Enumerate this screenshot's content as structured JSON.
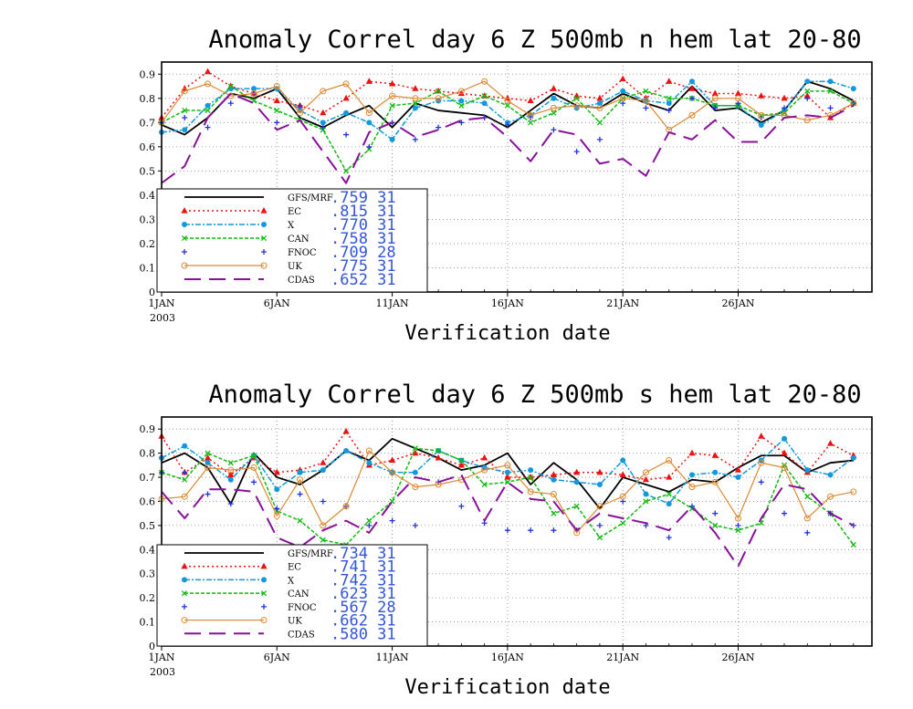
{
  "figure": {
    "xlabel": "Verification date",
    "year_label": "2003"
  },
  "model_styles": [
    {
      "name": "GFS/MRF",
      "color": "#000000",
      "dash": "",
      "marker": "none",
      "width": 1.8
    },
    {
      "name": "EC",
      "color": "#ee1111",
      "dash": "2,3",
      "marker": "triangle",
      "width": 1.5
    },
    {
      "name": "X",
      "color": "#1199dd",
      "dash": "6,2,2,2",
      "marker": "circle",
      "width": 1.5
    },
    {
      "name": "CAN",
      "color": "#11bb11",
      "dash": "4,2",
      "marker": "x",
      "width": 1.5
    },
    {
      "name": "FNOC",
      "color": "#2233dd",
      "dash": "",
      "marker": "plus",
      "width": 0
    },
    {
      "name": "UK",
      "color": "#dd8833",
      "dash": "",
      "marker": "opencircle",
      "width": 1.2
    },
    {
      "name": "CDAS",
      "color": "#881199",
      "dash": "18,9",
      "marker": "none",
      "width": 2
    }
  ],
  "chart_data": [
    {
      "type": "line",
      "title": "Anomaly Correl  day 6  Z 500mb  n hem  lat 20-80",
      "xlabel": "Verification date",
      "x": [
        1,
        2,
        3,
        4,
        5,
        6,
        7,
        8,
        9,
        10,
        11,
        12,
        13,
        14,
        15,
        16,
        17,
        18,
        19,
        20,
        21,
        22,
        23,
        24,
        25,
        26,
        27,
        28,
        29,
        30,
        31
      ],
      "xlim": [
        1,
        31.8
      ],
      "ylim": [
        0,
        0.95
      ],
      "yticks": [
        0,
        0.1,
        0.2,
        0.3,
        0.4,
        0.5,
        0.6,
        0.7,
        0.8,
        0.9
      ],
      "yticklabels": [
        "0",
        "0.1",
        "0.2",
        "0.3",
        "0.4",
        "0.5",
        "0.6",
        "0.7",
        "0.8",
        "0.9"
      ],
      "xticks": [
        1,
        6,
        11,
        16,
        21,
        26
      ],
      "xticklabels": [
        "1JAN",
        "6JAN",
        "11JAN",
        "16JAN",
        "21JAN",
        "26JAN"
      ],
      "grid": true,
      "legend": "bottom-left",
      "series": [
        {
          "name": "GFS/MRF",
          "score": ".759",
          "count": "31",
          "values": [
            0.69,
            0.65,
            0.72,
            0.82,
            0.8,
            0.84,
            0.72,
            0.68,
            0.73,
            0.77,
            0.68,
            0.78,
            0.75,
            0.74,
            0.73,
            0.68,
            0.75,
            0.82,
            0.77,
            0.76,
            0.82,
            0.78,
            0.75,
            0.85,
            0.75,
            0.76,
            0.7,
            0.75,
            0.87,
            0.84,
            0.79
          ]
        },
        {
          "name": "EC",
          "score": ".815",
          "count": "31",
          "values": [
            0.72,
            0.84,
            0.91,
            0.85,
            0.82,
            0.79,
            0.77,
            0.74,
            0.8,
            0.87,
            0.86,
            0.84,
            0.83,
            0.82,
            0.81,
            0.8,
            0.79,
            0.84,
            0.81,
            0.8,
            0.88,
            0.8,
            0.87,
            0.84,
            0.82,
            0.82,
            0.81,
            0.8,
            0.81,
            0.72,
            0.78
          ]
        },
        {
          "name": "X",
          "score": ".770",
          "count": "31",
          "values": [
            0.66,
            0.67,
            0.77,
            0.84,
            0.84,
            0.84,
            0.75,
            0.7,
            0.74,
            0.7,
            0.63,
            0.76,
            0.79,
            0.79,
            0.78,
            0.7,
            0.73,
            0.8,
            0.76,
            0.78,
            0.83,
            0.79,
            0.78,
            0.87,
            0.77,
            0.77,
            0.69,
            0.75,
            0.87,
            0.87,
            0.84
          ]
        },
        {
          "name": "CAN",
          "score": ".758",
          "count": "31",
          "values": [
            0.7,
            0.75,
            0.75,
            0.85,
            0.79,
            0.75,
            0.71,
            0.67,
            0.5,
            0.59,
            0.77,
            0.78,
            0.83,
            0.77,
            0.81,
            0.77,
            0.7,
            0.74,
            0.8,
            0.7,
            0.8,
            0.83,
            0.8,
            0.8,
            0.77,
            0.77,
            0.73,
            0.74,
            0.83,
            0.83,
            0.78
          ]
        },
        {
          "name": "FNOC",
          "score": ".709",
          "count": "28",
          "values": [
            0.7,
            0.72,
            0.68,
            0.78,
            0.82,
            0.7,
            0.77,
            0.68,
            0.65,
            0.6,
            0.7,
            0.63,
            0.68,
            0.7,
            0.72,
            0.69,
            0.72,
            0.67,
            0.58,
            0.63,
            0.78,
            0.76,
            0.75,
            0.8,
            0.76,
            0.78,
            0.72,
            0.76,
            0.8,
            0.76,
            0.78
          ]
        },
        {
          "name": "UK",
          "score": ".775",
          "count": "31",
          "values": [
            0.7,
            0.83,
            0.86,
            0.81,
            0.82,
            0.85,
            0.74,
            0.83,
            0.86,
            0.74,
            0.81,
            0.8,
            0.8,
            0.83,
            0.87,
            0.79,
            0.73,
            0.76,
            0.77,
            0.76,
            0.8,
            0.79,
            0.67,
            0.73,
            0.8,
            0.8,
            0.73,
            0.73,
            0.71,
            0.73,
            0.78
          ]
        },
        {
          "name": "CDAS",
          "score": ".652",
          "count": "31",
          "values": [
            0.45,
            0.52,
            0.72,
            0.82,
            0.78,
            0.67,
            0.71,
            0.58,
            0.45,
            0.66,
            0.7,
            0.64,
            0.67,
            0.71,
            0.72,
            0.64,
            0.54,
            0.67,
            0.65,
            0.53,
            0.55,
            0.48,
            0.66,
            0.63,
            0.71,
            0.62,
            0.62,
            0.72,
            0.73,
            0.72,
            0.77
          ]
        }
      ]
    },
    {
      "type": "line",
      "title": "Anomaly Correl  day 6  Z 500mb  s hem  lat 20-80",
      "xlabel": "Verification date",
      "x": [
        1,
        2,
        3,
        4,
        5,
        6,
        7,
        8,
        9,
        10,
        11,
        12,
        13,
        14,
        15,
        16,
        17,
        18,
        19,
        20,
        21,
        22,
        23,
        24,
        25,
        26,
        27,
        28,
        29,
        30,
        31
      ],
      "xlim": [
        1,
        31.8
      ],
      "ylim": [
        0,
        0.95
      ],
      "yticks": [
        0,
        0.1,
        0.2,
        0.3,
        0.4,
        0.5,
        0.6,
        0.7,
        0.8,
        0.9
      ],
      "yticklabels": [
        "0",
        "0.1",
        "0.2",
        "0.3",
        "0.4",
        "0.5",
        "0.6",
        "0.7",
        "0.8",
        "0.9"
      ],
      "xticks": [
        1,
        6,
        11,
        16,
        21,
        26
      ],
      "xticklabels": [
        "1JAN",
        "6JAN",
        "11JAN",
        "16JAN",
        "21JAN",
        "26JAN"
      ],
      "grid": true,
      "legend": "bottom-left",
      "series": [
        {
          "name": "GFS/MRF",
          "score": ".734",
          "count": "31",
          "values": [
            0.76,
            0.8,
            0.74,
            0.59,
            0.8,
            0.7,
            0.67,
            0.73,
            0.81,
            0.77,
            0.86,
            0.82,
            0.78,
            0.73,
            0.75,
            0.8,
            0.67,
            0.76,
            0.69,
            0.57,
            0.7,
            0.67,
            0.64,
            0.69,
            0.68,
            0.74,
            0.79,
            0.79,
            0.72,
            0.76,
            0.77
          ]
        },
        {
          "name": "EC",
          "score": ".741",
          "count": "31",
          "values": [
            0.87,
            0.72,
            0.78,
            0.71,
            0.78,
            0.72,
            0.73,
            0.76,
            0.89,
            0.75,
            0.77,
            0.8,
            0.78,
            0.75,
            0.78,
            0.7,
            0.7,
            0.71,
            0.72,
            0.72,
            0.71,
            0.69,
            0.7,
            0.8,
            0.79,
            0.73,
            0.87,
            0.8,
            0.72,
            0.84,
            0.79
          ]
        },
        {
          "name": "X",
          "score": ".742",
          "count": "31",
          "values": [
            0.78,
            0.83,
            0.76,
            0.69,
            0.79,
            0.65,
            0.72,
            0.73,
            0.81,
            0.76,
            0.72,
            0.72,
            0.81,
            0.77,
            0.74,
            0.72,
            0.73,
            0.69,
            0.68,
            0.67,
            0.77,
            0.63,
            0.59,
            0.71,
            0.72,
            0.7,
            0.77,
            0.86,
            0.73,
            0.71,
            0.78
          ]
        },
        {
          "name": "CAN",
          "score": ".623",
          "count": "31",
          "values": [
            0.72,
            0.69,
            0.8,
            0.76,
            0.79,
            0.56,
            0.52,
            0.44,
            0.42,
            0.52,
            0.6,
            0.82,
            0.81,
            0.77,
            0.67,
            0.68,
            0.7,
            0.55,
            0.58,
            0.45,
            0.51,
            0.6,
            0.63,
            0.57,
            0.5,
            0.48,
            0.51,
            0.75,
            0.62,
            0.55,
            0.42
          ]
        },
        {
          "name": "FNOC",
          "score": ".567",
          "count": "28",
          "values": [
            0.72,
            0.72,
            0.63,
            0.59,
            0.68,
            0.57,
            0.63,
            0.6,
            0.58,
            0.5,
            0.52,
            0.5,
            0.68,
            0.58,
            0.51,
            0.48,
            0.48,
            0.48,
            0.48,
            0.5,
            0.6,
            0.5,
            0.45,
            0.58,
            0.55,
            0.5,
            0.68,
            0.55,
            0.47,
            0.55,
            0.5
          ]
        },
        {
          "name": "UK",
          "score": ".662",
          "count": "31",
          "values": [
            0.61,
            0.62,
            0.74,
            0.73,
            0.74,
            0.54,
            0.69,
            0.5,
            0.58,
            0.81,
            0.72,
            0.66,
            0.67,
            0.69,
            0.73,
            0.75,
            0.64,
            0.63,
            0.47,
            0.58,
            0.62,
            0.72,
            0.77,
            0.66,
            0.68,
            0.53,
            0.76,
            0.74,
            0.53,
            0.62,
            0.64
          ]
        },
        {
          "name": "CDAS",
          "score": ".580",
          "count": "31",
          "values": [
            0.64,
            0.53,
            0.65,
            0.65,
            0.64,
            0.45,
            0.41,
            0.48,
            0.52,
            0.47,
            0.6,
            0.7,
            0.68,
            0.71,
            0.52,
            0.68,
            0.61,
            0.6,
            0.48,
            0.55,
            0.53,
            0.51,
            0.48,
            0.58,
            0.47,
            0.33,
            0.53,
            0.67,
            0.65,
            0.55,
            0.5
          ]
        }
      ]
    }
  ]
}
